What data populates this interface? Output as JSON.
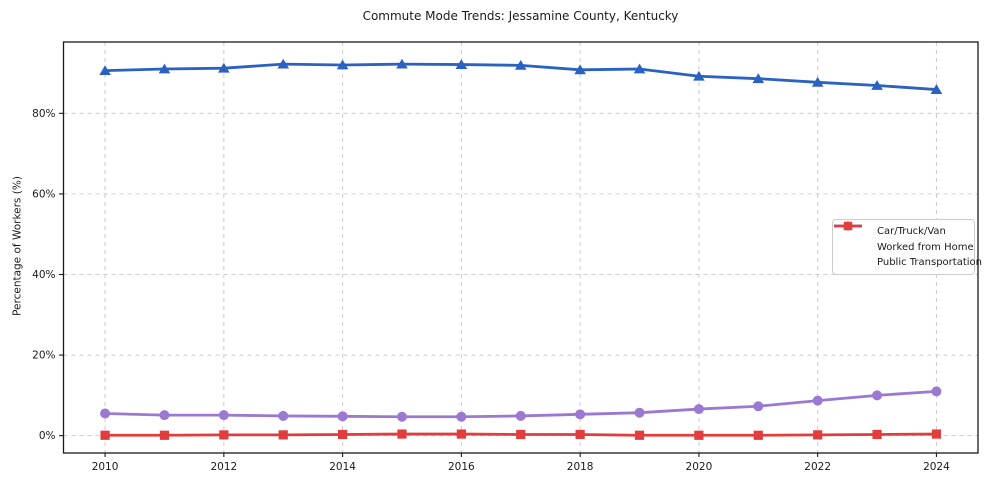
{
  "chart_data": {
    "type": "line",
    "title": "Commute Mode Trends: Jessamine County, Kentucky",
    "xlabel": "",
    "ylabel": "Percentage of Workers (%)",
    "x": [
      2010,
      2011,
      2012,
      2013,
      2014,
      2015,
      2016,
      2017,
      2018,
      2019,
      2020,
      2021,
      2022,
      2023,
      2024
    ],
    "series": [
      {
        "name": "Car/Truck/Van",
        "color": "#2a62c2",
        "marker": "triangle-up",
        "values": [
          90.6,
          91.0,
          91.2,
          92.2,
          92.0,
          92.2,
          92.1,
          91.9,
          90.8,
          91.0,
          89.2,
          88.6,
          87.7,
          86.9,
          85.9
        ]
      },
      {
        "name": "Worked from Home",
        "color": "#9b78d2",
        "marker": "circle",
        "values": [
          5.5,
          5.1,
          5.1,
          4.9,
          4.8,
          4.7,
          4.7,
          4.9,
          5.3,
          5.7,
          6.6,
          7.3,
          8.7,
          10.0,
          11.0
        ]
      },
      {
        "name": "Public Transportation",
        "color": "#e23d3d",
        "marker": "square",
        "values": [
          0.1,
          0.1,
          0.2,
          0.2,
          0.3,
          0.4,
          0.4,
          0.3,
          0.3,
          0.1,
          0.1,
          0.1,
          0.2,
          0.3,
          0.4
        ]
      }
    ],
    "xticks": {
      "values": [
        2010,
        2012,
        2014,
        2016,
        2018,
        2020,
        2022,
        2024
      ],
      "labels": [
        "2010",
        "2012",
        "2014",
        "2016",
        "2018",
        "2020",
        "2022",
        "2024"
      ]
    },
    "yticks": {
      "values": [
        0,
        20,
        40,
        60,
        80
      ],
      "labels": [
        "0%",
        "20%",
        "40%",
        "60%",
        "80%"
      ]
    },
    "xlim": [
      2009.3,
      2024.7
    ],
    "ylim": [
      -4.3,
      97.7
    ],
    "grid": true,
    "legend_position": "center right",
    "colors": {
      "grid": "#cccccc",
      "spine": "#1a1a1a",
      "tick_text": "#1a1a1a",
      "background": "#ffffff"
    }
  }
}
